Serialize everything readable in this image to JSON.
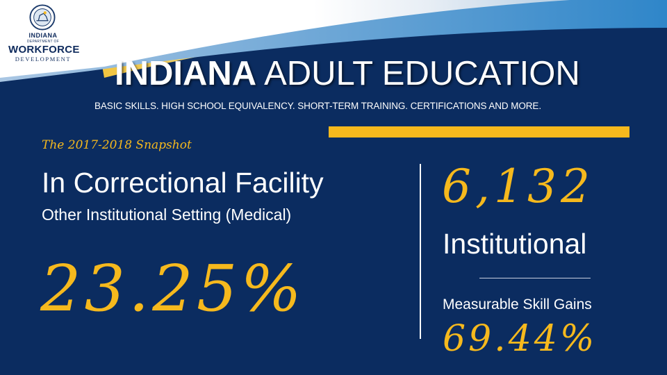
{
  "logo": {
    "line1": "INDIANA",
    "line2": "DEPARTMENT OF",
    "line3": "WORKFORCE",
    "line4": "DEVELOPMENT"
  },
  "header": {
    "title_bold": "INDIANA",
    "title_rest": " ADULT EDUCATION",
    "subtitle": "BASIC SKILLS. HIGH SCHOOL EQUIVALENCY. SHORT-TERM TRAINING. CERTIFICATIONS AND MORE."
  },
  "snapshot_label": "The 2017-2018 Snapshot",
  "left": {
    "heading": "In Correctional Facility",
    "subheading": "Other Institutional Setting (Medical)",
    "percent": "23.25%"
  },
  "right": {
    "count": "6,132",
    "count_label": "Institutional",
    "metric_label": "Measurable Skill Gains",
    "metric_value": "69.44%"
  },
  "colors": {
    "background": "#0b2c60",
    "accent": "#f6b91d",
    "text": "#ffffff"
  }
}
